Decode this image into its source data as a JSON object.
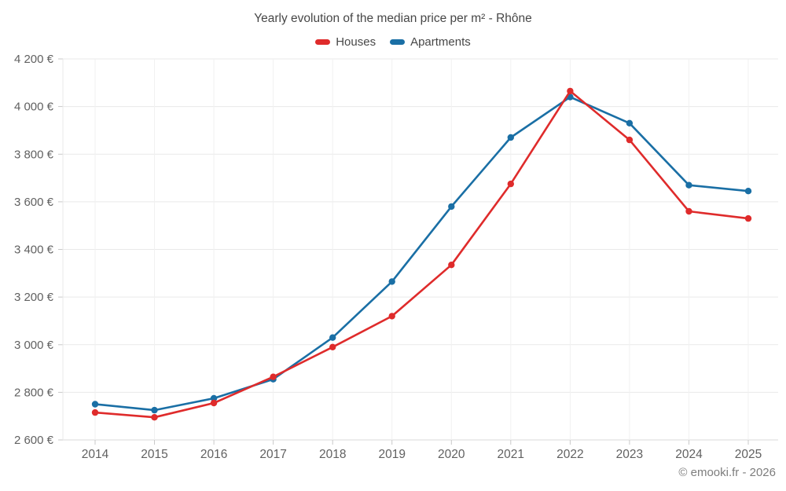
{
  "page": {
    "footer": "© emooki.fr - 2026"
  },
  "chart_data": {
    "type": "line",
    "title": "Yearly evolution of the median price per m² - Rhône",
    "x": [
      "2014",
      "2015",
      "2016",
      "2017",
      "2018",
      "2019",
      "2020",
      "2021",
      "2022",
      "2023",
      "2024",
      "2025"
    ],
    "series": [
      {
        "name": "Houses",
        "color": "#df2b2b",
        "values": [
          2715,
          2695,
          2755,
          2865,
          2990,
          3120,
          3335,
          3675,
          4065,
          3860,
          3560,
          3530
        ]
      },
      {
        "name": "Apartments",
        "color": "#1a6fa5",
        "values": [
          2750,
          2725,
          2775,
          2855,
          3030,
          3265,
          3580,
          3870,
          4040,
          3930,
          3670,
          3645
        ]
      }
    ],
    "ylabel": "",
    "xlabel": "",
    "ylim": [
      2600,
      4200
    ],
    "ytick_step": 200,
    "ytick_labels": [
      "2 600 €",
      "2 800 €",
      "3 000 €",
      "3 200 €",
      "3 400 €",
      "3 600 €",
      "3 800 €",
      "4 000 €",
      "4 200 €"
    ],
    "grid": true,
    "legend_position": "top",
    "currency_suffix": " €"
  },
  "colors": {
    "grid_h": "#e9e9e9",
    "grid_v": "#f1f1f1",
    "axis_line": "#d9d9d9",
    "tick": "#c9c9c9",
    "axis_text": "#616161"
  }
}
